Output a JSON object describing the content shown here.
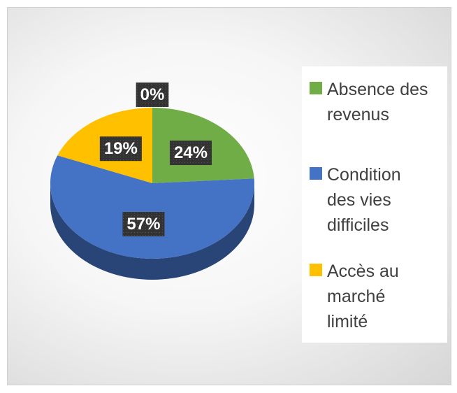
{
  "chart_data": {
    "type": "pie",
    "categories": [
      "Absence des revenus",
      "Condition des vies difficiles",
      "Accès au marché limité",
      null
    ],
    "values": [
      24,
      57,
      19,
      0
    ],
    "value_labels": [
      "24%",
      "57%",
      "19%",
      "0%"
    ],
    "colors": [
      "#70ad47",
      "#4472c4",
      "#ffc000",
      "#a5a5a5"
    ],
    "legend": "right"
  }
}
